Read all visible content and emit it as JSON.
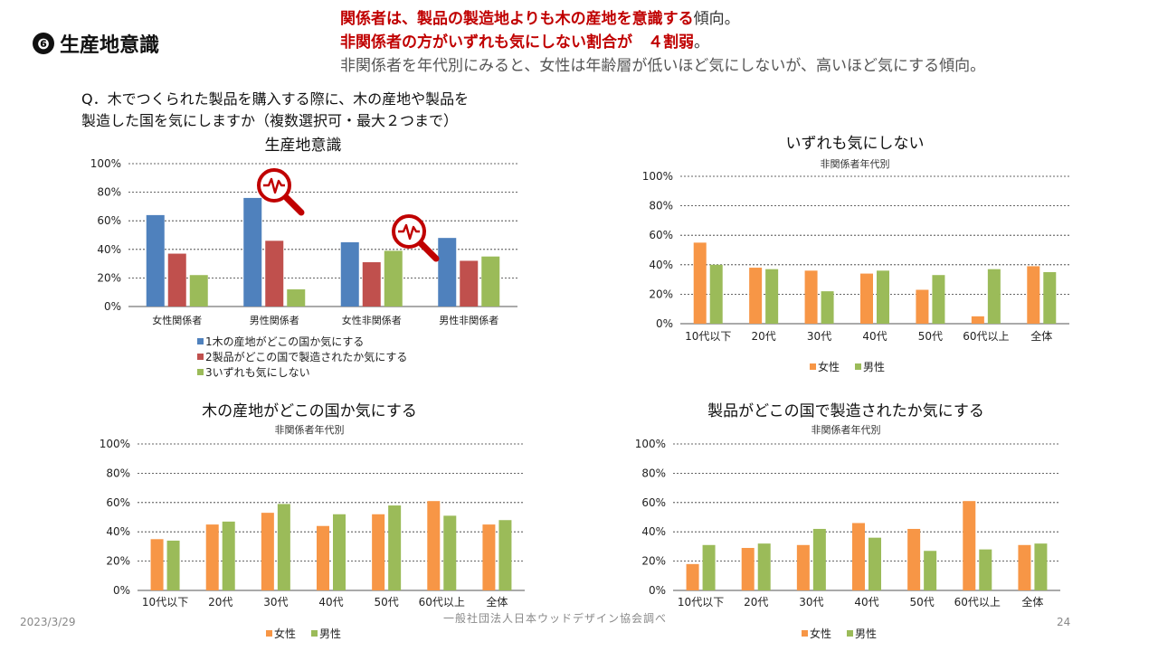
{
  "header": {
    "title_num": "❻",
    "title": "生産地意識",
    "line1_red": "関係者は、製品の製造地よりも木の産地を意識する",
    "line1_tail": "傾向。",
    "line2_red": "非関係者の方がいずれも気にしない割合が　４割弱",
    "line2_tail": "。",
    "line3": "非関係者を年代別にみると、女性は年齢層が低いほど気にしないが、高いほど気にする傾向。"
  },
  "question": {
    "line1": "Q．木でつくられた製品を購入する際に、木の産地や製品を",
    "line2": "製造した国を気にしますか（複数選択可・最大２つまで）"
  },
  "footer": {
    "date": "2023/3/29",
    "org": "一般社団法人日本ウッドデザイン協会調べ",
    "page": "24"
  },
  "colors": {
    "blue": "#4f81bd",
    "red": "#c0504d",
    "green": "#9bbb59",
    "orange": "#f79646",
    "magnifier": "#c00000"
  },
  "chart_data": [
    {
      "id": "c1",
      "type": "bar",
      "title": "生産地意識",
      "subtitle": "",
      "categories": [
        "女性関係者",
        "男性関係者",
        "女性非関係者",
        "男性非関係者"
      ],
      "series": [
        {
          "name": "1木の産地がどこの国か気にする",
          "color": "#4f81bd",
          "values": [
            64,
            76,
            45,
            48
          ]
        },
        {
          "name": "2製品がどこの国で製造されたか気にする",
          "color": "#c0504d",
          "values": [
            37,
            46,
            31,
            32
          ]
        },
        {
          "name": "3いずれも気にしない",
          "color": "#9bbb59",
          "values": [
            22,
            12,
            39,
            35
          ]
        }
      ],
      "yticks": [
        "0%",
        "20%",
        "40%",
        "60%",
        "80%",
        "100%"
      ],
      "ylim": [
        0,
        100
      ],
      "grid": true,
      "legend": "bottom-left"
    },
    {
      "id": "c2",
      "type": "bar",
      "title": "いずれも気にしない",
      "subtitle": "非関係者年代別",
      "categories": [
        "10代以下",
        "20代",
        "30代",
        "40代",
        "50代",
        "60代以上",
        "全体"
      ],
      "series": [
        {
          "name": "女性",
          "color": "#f79646",
          "values": [
            55,
            38,
            36,
            34,
            23,
            5,
            39
          ]
        },
        {
          "name": "男性",
          "color": "#9bbb59",
          "values": [
            40,
            37,
            22,
            36,
            33,
            37,
            35
          ]
        }
      ],
      "yticks": [
        "0%",
        "20%",
        "40%",
        "60%",
        "80%",
        "100%"
      ],
      "ylim": [
        0,
        100
      ],
      "grid": true,
      "legend": "bottom"
    },
    {
      "id": "c3",
      "type": "bar",
      "title": "木の産地がどこの国か気にする",
      "subtitle": "非関係者年代別",
      "categories": [
        "10代以下",
        "20代",
        "30代",
        "40代",
        "50代",
        "60代以上",
        "全体"
      ],
      "series": [
        {
          "name": "女性",
          "color": "#f79646",
          "values": [
            35,
            45,
            53,
            44,
            52,
            61,
            45
          ]
        },
        {
          "name": "男性",
          "color": "#9bbb59",
          "values": [
            34,
            47,
            59,
            52,
            58,
            51,
            48
          ]
        }
      ],
      "yticks": [
        "0%",
        "20%",
        "40%",
        "60%",
        "80%",
        "100%"
      ],
      "ylim": [
        0,
        100
      ],
      "grid": true,
      "legend": "bottom"
    },
    {
      "id": "c4",
      "type": "bar",
      "title": "製品がどこの国で製造されたか気にする",
      "subtitle": "非関係者年代別",
      "categories": [
        "10代以下",
        "20代",
        "30代",
        "40代",
        "50代",
        "60代以上",
        "全体"
      ],
      "series": [
        {
          "name": "女性",
          "color": "#f79646",
          "values": [
            18,
            29,
            31,
            46,
            42,
            61,
            31
          ]
        },
        {
          "name": "男性",
          "color": "#9bbb59",
          "values": [
            31,
            32,
            42,
            36,
            27,
            28,
            32
          ]
        }
      ],
      "yticks": [
        "0%",
        "20%",
        "40%",
        "60%",
        "80%",
        "100%"
      ],
      "ylim": [
        0,
        100
      ],
      "grid": true,
      "legend": "bottom"
    }
  ]
}
